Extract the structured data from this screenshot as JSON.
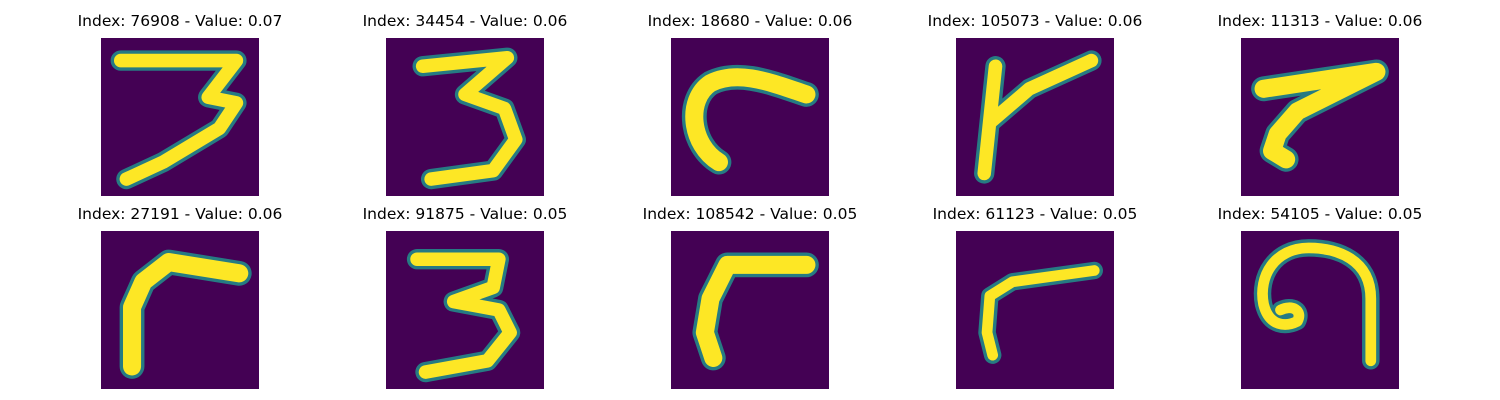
{
  "colors": {
    "background": "#440154",
    "teal": "#21908c",
    "yellow": "#fde725"
  },
  "panels": [
    {
      "title": "Index: 76908 - Value: 0.07",
      "digit": "three-icon"
    },
    {
      "title": "Index: 34454 - Value: 0.06",
      "digit": "three-icon"
    },
    {
      "title": "Index: 18680 - Value: 0.06",
      "digit": "hook-stroke-icon"
    },
    {
      "title": "Index: 105073 - Value: 0.06",
      "digit": "four-like-icon"
    },
    {
      "title": "Index: 11313 - Value: 0.06",
      "digit": "seven-like-icon"
    },
    {
      "title": "Index: 27191 - Value: 0.06",
      "digit": "angle-stroke-icon"
    },
    {
      "title": "Index: 91875 - Value: 0.05",
      "digit": "three-icon"
    },
    {
      "title": "Index: 108542 - Value: 0.05",
      "digit": "seven-like-icon"
    },
    {
      "title": "Index: 61123 - Value: 0.05",
      "digit": "seven-like-icon"
    },
    {
      "title": "Index: 54105 - Value: 0.05",
      "digit": "loop-stroke-icon"
    }
  ]
}
